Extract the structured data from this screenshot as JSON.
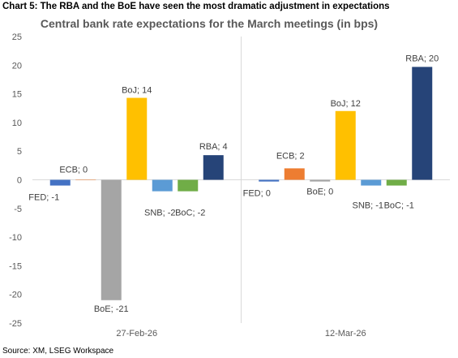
{
  "header": {
    "caption": "Chart 5: The RBA and the BoE have seen the most dramatic adjustment in expectations"
  },
  "footer": {
    "source": "Source: XM, LSEG Workspace"
  },
  "chart_data": {
    "type": "bar",
    "title": "Central bank rate expectations for the March meetings (in bps)",
    "xlabel": "",
    "ylabel": "",
    "ylim": [
      -25,
      25
    ],
    "ytick_step": 5,
    "grid": false,
    "legend": "none",
    "categories": [
      "27-Feb-26",
      "12-Mar-26"
    ],
    "series": [
      {
        "bank": "FED",
        "color": "#4472C4",
        "values": [
          -1,
          -0.3
        ],
        "labels": [
          "FED; -1",
          "FED; 0"
        ]
      },
      {
        "bank": "ECB",
        "color": "#ED7D31",
        "values": [
          0,
          2
        ],
        "labels": [
          "ECB; 0",
          "ECB; 2"
        ]
      },
      {
        "bank": "BoE",
        "color": "#A5A5A5",
        "values": [
          -21,
          -0.3
        ],
        "labels": [
          "BoE; -21",
          "BoE; 0"
        ]
      },
      {
        "bank": "BoJ",
        "color": "#FFC000",
        "values": [
          14.3,
          12
        ],
        "labels": [
          "BoJ; 14",
          "BoJ; 12"
        ]
      },
      {
        "bank": "SNB",
        "color": "#5B9BD5",
        "values": [
          -2,
          -1
        ],
        "labels": [
          "SNB; -2",
          "SNB; -1"
        ]
      },
      {
        "bank": "BoC",
        "color": "#70AD47",
        "values": [
          -2,
          -1
        ],
        "labels": [
          "BoC; -2",
          "BoC; -1"
        ]
      },
      {
        "bank": "RBA",
        "color": "#264478",
        "values": [
          4.3,
          19.7
        ],
        "labels": [
          "RBA; 4",
          "RBA; 20"
        ]
      }
    ]
  }
}
